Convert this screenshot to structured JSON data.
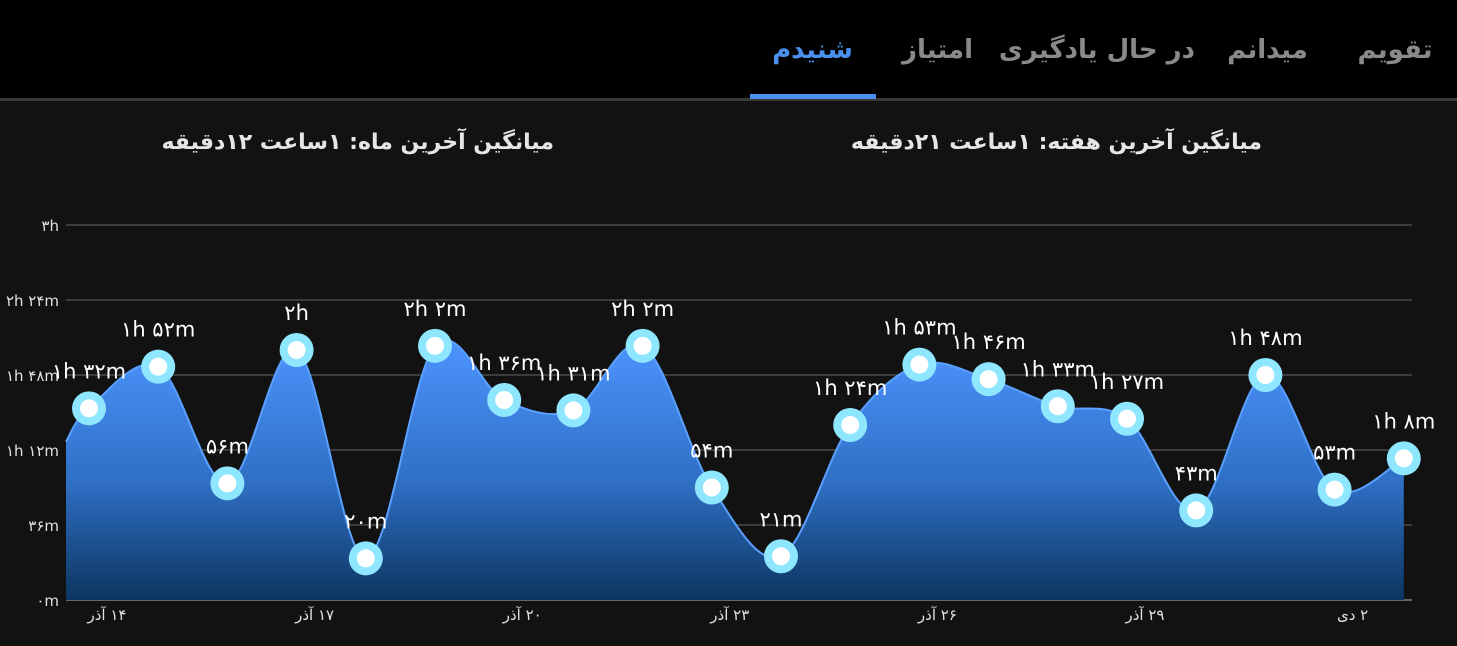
{
  "tabs": [
    {
      "label": "تقویم",
      "active": false
    },
    {
      "label": "میدانم",
      "active": false
    },
    {
      "label": "در حال یادگیری",
      "active": false
    },
    {
      "label": "امتیاز",
      "active": false
    },
    {
      "label": "شنیدم",
      "active": true
    }
  ],
  "averages": {
    "week": {
      "label": "میانگین آخرین هفته:",
      "hours": "۱ساعت",
      "minutes": "۲۱دقیقه"
    },
    "month": {
      "label": "میانگین آخرین ماه:",
      "hours": "۱ساعت",
      "minutes": "۱۲دقیقه"
    }
  },
  "colors": {
    "accent": "#4a90ee",
    "area_top": "#4d94ff",
    "area_bottom": "#0c3560",
    "point_ring": "#8fe6ff",
    "point_center": "#ffffff"
  },
  "chart_data": {
    "type": "area",
    "smooth": true,
    "y_unit": "minutes",
    "ylim": [
      0,
      180
    ],
    "y_ticks": [
      {
        "value": 0,
        "label": "۰m"
      },
      {
        "value": 36,
        "label": "۳۶m"
      },
      {
        "value": 72,
        "label": "۱h ۱۲m"
      },
      {
        "value": 108,
        "label": "۱h ۴۸m"
      },
      {
        "value": 144,
        "label": "۲h ۲۴m"
      },
      {
        "value": 180,
        "label": "۳h"
      }
    ],
    "grid": true,
    "x_ticks": [
      {
        "index": 0,
        "label": "۱۴ آذر"
      },
      {
        "index": 3,
        "label": "۱۷ آذر"
      },
      {
        "index": 6,
        "label": "۲۰ آذر"
      },
      {
        "index": 9,
        "label": "۲۳ آذر"
      },
      {
        "index": 12,
        "label": "۲۶ آذر"
      },
      {
        "index": 15,
        "label": "۲۹ آذر"
      },
      {
        "index": 18,
        "label": "۲ دی"
      }
    ],
    "points": [
      {
        "value": 92,
        "label": "۱h ۳۲m"
      },
      {
        "value": 112,
        "label": "۱h ۵۲m"
      },
      {
        "value": 56,
        "label": "۵۶m"
      },
      {
        "value": 120,
        "label": "۲h"
      },
      {
        "value": 20,
        "label": "۲۰m"
      },
      {
        "value": 122,
        "label": "۲h ۲m"
      },
      {
        "value": 96,
        "label": "۱h ۳۶m"
      },
      {
        "value": 91,
        "label": "۱h ۳۱m"
      },
      {
        "value": 122,
        "label": "۲h ۲m"
      },
      {
        "value": 54,
        "label": "۵۴m"
      },
      {
        "value": 21,
        "label": "۲۱m"
      },
      {
        "value": 84,
        "label": "۱h ۲۴m"
      },
      {
        "value": 113,
        "label": "۱h ۵۳m"
      },
      {
        "value": 106,
        "label": "۱h ۴۶m"
      },
      {
        "value": 93,
        "label": "۱h ۳۳m"
      },
      {
        "value": 87,
        "label": "۱h ۲۷m"
      },
      {
        "value": 43,
        "label": "۴۳m"
      },
      {
        "value": 108,
        "label": "۱h ۴۸m"
      },
      {
        "value": 53,
        "label": "۵۳m"
      },
      {
        "value": 68,
        "label": "۱h ۸m"
      }
    ],
    "leading_value": 76
  }
}
